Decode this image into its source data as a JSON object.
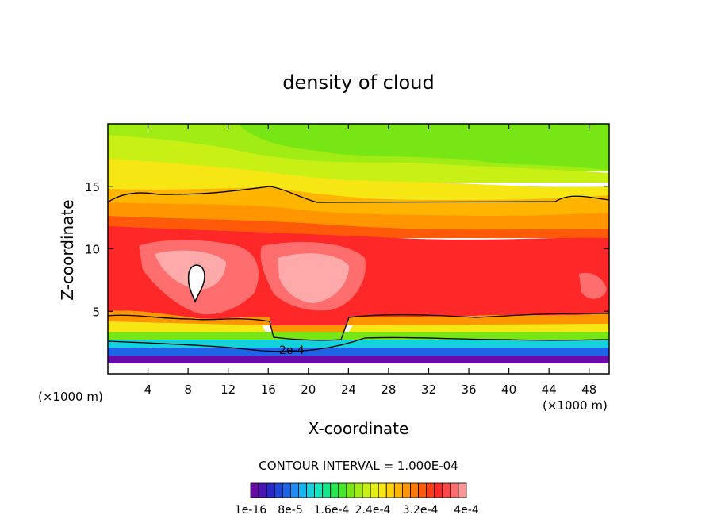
{
  "chart_data": {
    "type": "heatmap",
    "title": "density of cloud",
    "xlabel": "X-coordinate",
    "ylabel": "Z-coordinate",
    "x_unit_label": "(×1000 m)",
    "y_unit_label": "(×1000 m)",
    "xlim": [
      0,
      50
    ],
    "ylim": [
      0,
      20
    ],
    "x_ticks": [
      4,
      8,
      12,
      16,
      20,
      24,
      28,
      32,
      36,
      40,
      44,
      48
    ],
    "x_tick_labels": [
      "4",
      "8",
      "12",
      "16",
      "20",
      "24",
      "28",
      "32",
      "36",
      "40",
      "44",
      "48"
    ],
    "y_ticks": [
      5,
      10,
      15
    ],
    "y_tick_labels": [
      "5",
      "10",
      "15"
    ],
    "contour_interval_text": "CONTOUR INTERVAL = 1.000E-04",
    "contour_label": "2e-4",
    "colorbar": {
      "tick_labels": [
        "1e-16",
        "8e-5",
        "1.6e-4",
        "2.4e-4",
        "3.2e-4",
        "4e-4"
      ],
      "colors": [
        "#6a0aa8",
        "#4a14b8",
        "#2828c8",
        "#1e46d8",
        "#1e64e6",
        "#1e8cf0",
        "#14b4f0",
        "#14d2dc",
        "#14e6be",
        "#14e68c",
        "#28e650",
        "#46e628",
        "#78e614",
        "#a0ec14",
        "#c8f014",
        "#e6f014",
        "#f5e614",
        "#ffd20a",
        "#ffb400",
        "#ff9600",
        "#ff7800",
        "#ff5a0a",
        "#ff3c14",
        "#ff2828",
        "#ff4646",
        "#ff6e6e",
        "#ff9696"
      ]
    },
    "bands": [
      {
        "level": 1,
        "color": "#6a0aa8"
      },
      {
        "level": 2,
        "color": "#2838c8"
      },
      {
        "level": 3,
        "color": "#1e8cf0"
      },
      {
        "level": 4,
        "color": "#14d2dc"
      },
      {
        "level": 5,
        "color": "#28e650"
      },
      {
        "level": 6,
        "color": "#78e614"
      },
      {
        "level": 7,
        "color": "#c8f014"
      },
      {
        "level": 8,
        "color": "#ffd20a"
      },
      {
        "level": 9,
        "color": "#ff9600"
      },
      {
        "level": 10,
        "color": "#ff5a0a"
      },
      {
        "level": 11,
        "color": "#ff2828"
      },
      {
        "level": 12,
        "color": "#ff6e6e"
      },
      {
        "level": 13,
        "color": "#ffaaaa"
      }
    ]
  }
}
